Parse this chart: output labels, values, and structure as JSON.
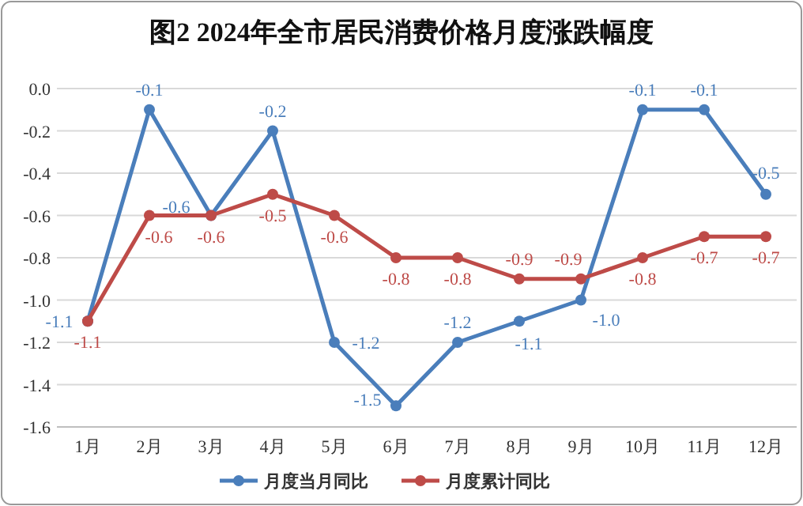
{
  "chart_data": {
    "type": "line",
    "title": "图2 2024年全市居民消费价格月度涨跌幅度",
    "categories": [
      "1月",
      "2月",
      "3月",
      "4月",
      "5月",
      "6月",
      "7月",
      "8月",
      "9月",
      "10月",
      "11月",
      "12月"
    ],
    "series": [
      {
        "name": "月度当月同比",
        "color": "#4a7ebb",
        "values": [
          -1.1,
          -0.1,
          -0.6,
          -0.2,
          -1.2,
          -1.5,
          -1.2,
          -1.1,
          -1.0,
          -0.1,
          -0.1,
          -0.5
        ],
        "value_labels": [
          "-1.1",
          "-0.1",
          "-0.6",
          "-0.2",
          "-1.2",
          "-1.5",
          "-1.2",
          "-1.1",
          "-1.0",
          "-0.1",
          "-0.1",
          "-0.5"
        ]
      },
      {
        "name": "月度累计同比",
        "color": "#be4b48",
        "values": [
          -1.1,
          -0.6,
          -0.6,
          -0.5,
          -0.6,
          -0.8,
          -0.8,
          -0.9,
          -0.9,
          -0.8,
          -0.7,
          -0.7
        ],
        "value_labels": [
          "-1.1",
          "-0.6",
          "-0.6",
          "-0.5",
          "-0.6",
          "-0.8",
          "-0.8",
          "-0.9",
          "-0.9",
          "-0.8",
          "-0.7",
          "-0.7"
        ]
      }
    ],
    "ylim": [
      -1.6,
      0
    ],
    "yticks": [
      {
        "value": 0,
        "label": "0.0"
      },
      {
        "value": -0.2,
        "label": "-0.2"
      },
      {
        "value": -0.4,
        "label": "-0.4"
      },
      {
        "value": -0.6,
        "label": "-0.6"
      },
      {
        "value": -0.8,
        "label": "-0.8"
      },
      {
        "value": -1,
        "label": "-1.0"
      },
      {
        "value": -1.2,
        "label": "-1.2"
      },
      {
        "value": -1.4,
        "label": "-1.4"
      },
      {
        "value": -1.6,
        "label": "-1.6"
      }
    ],
    "grid": "y",
    "legend": "bottom",
    "marker": "circle",
    "line_style": "solid"
  }
}
